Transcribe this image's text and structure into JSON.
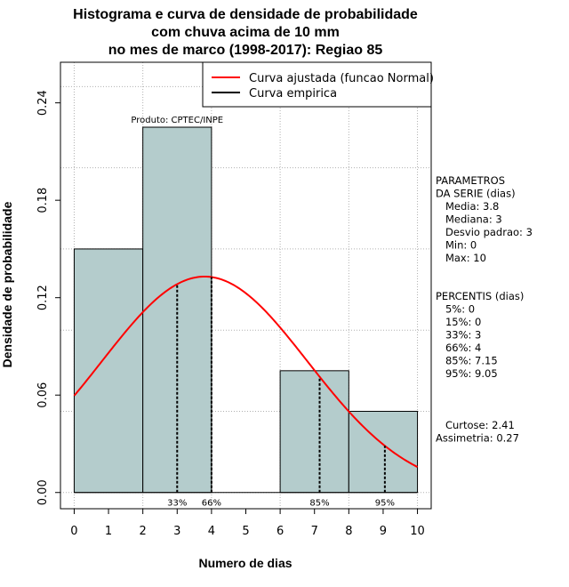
{
  "chart_data": {
    "type": "bar",
    "title_lines": [
      "Histograma e curva de densidade de probabilidade",
      "com chuva acima de 10 mm",
      "no mes de marco (1998-2017): Regiao 85"
    ],
    "xlabel": "Numero de dias",
    "ylabel": "Densidade de probabilidade",
    "xlim": [
      -0.4,
      10.4
    ],
    "ylim": [
      -0.01,
      0.265
    ],
    "x_ticks": [
      0,
      1,
      2,
      3,
      4,
      5,
      6,
      7,
      8,
      9,
      10
    ],
    "y_ticks": [
      0.0,
      0.06,
      0.12,
      0.18,
      0.24
    ],
    "y_tick_labels": [
      "0.00",
      "0.06",
      "0.12",
      "0.18",
      "0.24"
    ],
    "grid_y": [
      0.0,
      0.05,
      0.1,
      0.15,
      0.2,
      0.25
    ],
    "grid_x": [
      0,
      2,
      4,
      6,
      8,
      10
    ],
    "bins": [
      {
        "x0": 0,
        "x1": 2,
        "density": 0.15
      },
      {
        "x0": 2,
        "x1": 4,
        "density": 0.225
      },
      {
        "x0": 4,
        "x1": 6,
        "density": 0.0
      },
      {
        "x0": 6,
        "x1": 8,
        "density": 0.075
      },
      {
        "x0": 8,
        "x1": 10,
        "density": 0.05
      }
    ],
    "series": [
      {
        "name": "Curva ajustada (funcao Normal)",
        "color": "#ff0000",
        "mean": 3.8,
        "sd": 3.0
      },
      {
        "name": "Curva empirica",
        "color": "#000000"
      }
    ],
    "legend_position": "top-right",
    "percentile_markers": [
      {
        "label": "33%",
        "x": 3.0
      },
      {
        "label": "66%",
        "x": 4.0
      },
      {
        "label": "85%",
        "x": 7.15
      },
      {
        "label": "95%",
        "x": 9.05
      }
    ],
    "annotation": "Produto: CPTEC/INPE",
    "bar_color": "#b4cccc"
  },
  "side_panel": {
    "params_lines": [
      "PARAMETROS",
      "DA SERIE (dias)",
      "   Media: 3.8",
      "   Mediana: 3",
      "   Desvio padrao: 3",
      "   Min: 0",
      "   Max: 10"
    ],
    "percentis_lines": [
      "PERCENTIS (dias)",
      "   5%: 0",
      "   15%: 0",
      "   33%: 3",
      "   66%: 4",
      "   85%: 7.15",
      "   95%: 9.05"
    ],
    "stats_lines": [
      "   Curtose: 2.41",
      "Assimetria: 0.27"
    ]
  }
}
